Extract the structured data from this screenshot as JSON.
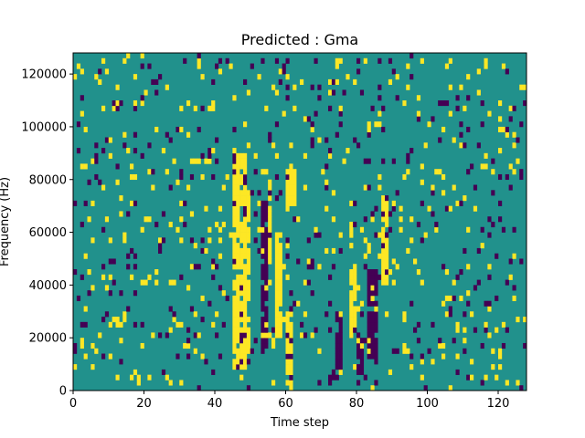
{
  "chart_data": {
    "type": "heatmap",
    "title": "Predicted : Gma",
    "xlabel": "Time step",
    "ylabel": "Frequency (Hz)",
    "xlim": [
      0,
      128
    ],
    "ylim": [
      0,
      128000
    ],
    "xticks": [
      0,
      20,
      40,
      60,
      80,
      100,
      120
    ],
    "yticks": [
      0,
      20000,
      40000,
      60000,
      80000,
      100000,
      120000
    ],
    "grid": false,
    "colormap": "viridis",
    "levels": [
      -1,
      0,
      1
    ],
    "colors": {
      "low": "#440154",
      "mid": "#21918c",
      "high": "#fde725"
    },
    "rows": 64,
    "cols": 128,
    "bin_height_hz": 2000,
    "background_level": 0,
    "dense_regions": [
      {
        "x0": 45,
        "x1": 49,
        "y0": 8000,
        "y1": 90000,
        "level": 1
      },
      {
        "x0": 49,
        "x1": 50,
        "y0": 10000,
        "y1": 76000,
        "level": 1
      },
      {
        "x0": 53,
        "x1": 55,
        "y0": 14000,
        "y1": 72000,
        "level": -1
      },
      {
        "x0": 57,
        "x1": 59,
        "y0": 20000,
        "y1": 60000,
        "level": 1
      },
      {
        "x0": 60,
        "x1": 63,
        "y0": 70000,
        "y1": 84000,
        "level": 1
      },
      {
        "x0": 60,
        "x1": 62,
        "y0": 2000,
        "y1": 30000,
        "level": 1
      },
      {
        "x0": 66,
        "x1": 68,
        "y0": 46000,
        "y1": 50000,
        "level": -1
      },
      {
        "x0": 74,
        "x1": 76,
        "y0": 8000,
        "y1": 30000,
        "level": -1
      },
      {
        "x0": 78,
        "x1": 80,
        "y0": 20000,
        "y1": 46000,
        "level": 1
      },
      {
        "x0": 83,
        "x1": 86,
        "y0": 12000,
        "y1": 46000,
        "level": -1
      },
      {
        "x0": 87,
        "x1": 89,
        "y0": 40000,
        "y1": 74000,
        "level": 1
      },
      {
        "x0": 55,
        "x1": 56,
        "y0": 48000,
        "y1": 80000,
        "level": 1
      },
      {
        "x0": 80,
        "x1": 82,
        "y0": 6000,
        "y1": 20000,
        "level": -1
      }
    ],
    "scatter_density": {
      "high": 0.05,
      "low": 0.045
    },
    "random_seed": 7
  }
}
